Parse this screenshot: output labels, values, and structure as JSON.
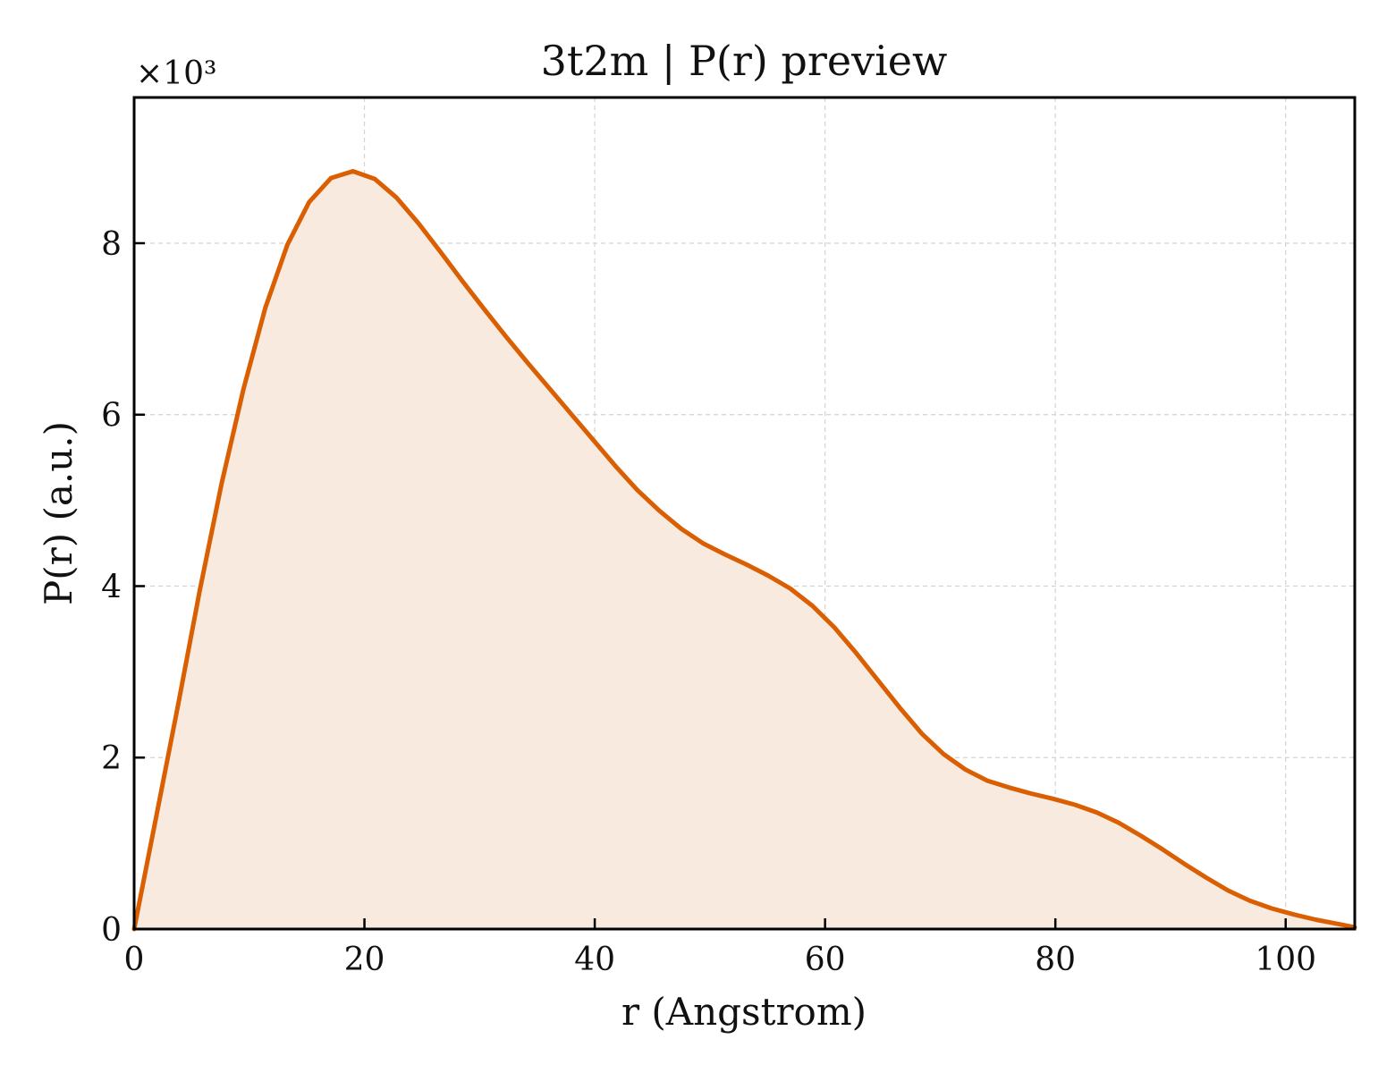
{
  "chart_data": {
    "type": "area",
    "title": "3t2m | P(r) preview",
    "xlabel": "r (Angstrom)",
    "ylabel": "P(r) (a.u.)",
    "y_multiplier_label": "×10³",
    "xlim": [
      0,
      106
    ],
    "ylim": [
      0,
      9.7
    ],
    "x_ticks": [
      0,
      20,
      40,
      60,
      80,
      100
    ],
    "y_ticks": [
      0,
      2,
      4,
      6,
      8
    ],
    "grid": true,
    "colors": {
      "line": "#d95f02",
      "fill": "#f9eadf",
      "grid": "#d3d3d3",
      "axes": "#000000"
    },
    "series": [
      {
        "x": [
          0,
          1.9,
          3.8,
          5.7,
          7.6,
          9.5,
          11.4,
          13.3,
          15.2,
          17.1,
          19,
          20.9,
          22.8,
          24.7,
          26.6,
          28.5,
          30.4,
          32.3,
          34.2,
          36.1,
          38,
          39.9,
          41.8,
          43.7,
          45.6,
          47.5,
          49.4,
          51.3,
          53.2,
          55.1,
          57,
          58.9,
          60.8,
          62.7,
          64.6,
          66.5,
          68.4,
          70.3,
          72.2,
          74.1,
          76,
          77.9,
          79.8,
          81.7,
          83.6,
          85.5,
          87.4,
          89.3,
          91.2,
          93.1,
          95,
          96.9,
          98.8,
          100.7,
          102.6,
          104.5,
          106
        ],
        "y": [
          0,
          1.3,
          2.6,
          3.95,
          5.2,
          6.3,
          7.25,
          7.98,
          8.48,
          8.76,
          8.84,
          8.75,
          8.53,
          8.23,
          7.9,
          7.56,
          7.23,
          6.91,
          6.6,
          6.3,
          6.0,
          5.7,
          5.4,
          5.12,
          4.88,
          4.67,
          4.5,
          4.37,
          4.25,
          4.12,
          3.97,
          3.77,
          3.52,
          3.22,
          2.9,
          2.58,
          2.28,
          2.04,
          1.86,
          1.73,
          1.65,
          1.58,
          1.52,
          1.45,
          1.36,
          1.24,
          1.09,
          0.93,
          0.76,
          0.6,
          0.45,
          0.33,
          0.24,
          0.17,
          0.11,
          0.06,
          0.02
        ]
      }
    ]
  }
}
